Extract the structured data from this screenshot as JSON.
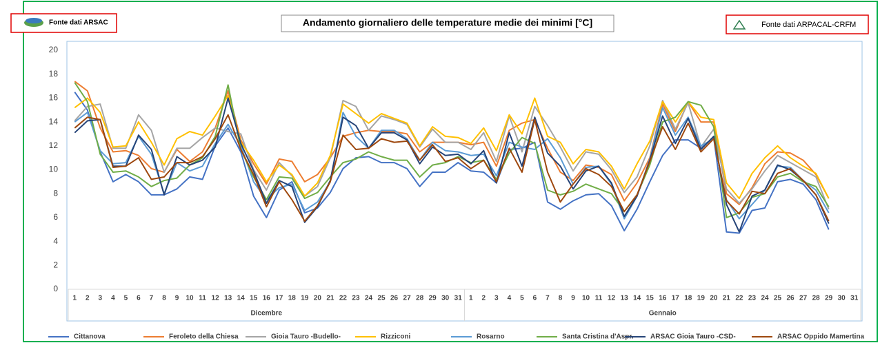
{
  "chart_data": {
    "type": "line",
    "title": "Andamento giornaliero delle temperature medie dei minimi  [°C]",
    "sources": [
      "Fonte dati ARSAC",
      "Fonte dati ARPACAL-CRFM"
    ],
    "groups": [
      "Dicembre",
      "Gennaio"
    ],
    "categories": [
      "1",
      "2",
      "3",
      "4",
      "5",
      "6",
      "7",
      "8",
      "9",
      "10",
      "11",
      "12",
      "13",
      "14",
      "15",
      "16",
      "17",
      "18",
      "19",
      "20",
      "21",
      "22",
      "23",
      "24",
      "25",
      "26",
      "27",
      "28",
      "29",
      "30",
      "31",
      "1",
      "2",
      "3",
      "4",
      "5",
      "6",
      "7",
      "8",
      "9",
      "10",
      "11",
      "12",
      "13",
      "14",
      "15",
      "16",
      "17",
      "18",
      "19",
      "20",
      "21",
      "22",
      "23",
      "24",
      "25",
      "26",
      "27",
      "28",
      "29",
      "30",
      "31"
    ],
    "ylim": [
      0,
      20
    ],
    "yticks": [
      0,
      2,
      4,
      6,
      8,
      10,
      12,
      14,
      16,
      18,
      20
    ],
    "grid": false,
    "series": [
      {
        "name": "Cittanova",
        "color": "#4472c4",
        "values": [
          16.5,
          15,
          11.5,
          9,
          9.6,
          9,
          7.9,
          7.9,
          8.4,
          9.4,
          9.2,
          12,
          13.5,
          11.5,
          7.8,
          6,
          8.3,
          9,
          6.4,
          6.8,
          8.1,
          10.1,
          11,
          11.1,
          10.6,
          10.6,
          10.1,
          8.6,
          9.8,
          9.8,
          10.6,
          9.9,
          9.8,
          8.9,
          11.7,
          11.8,
          12.3,
          7.3,
          6.7,
          7.4,
          7.9,
          8,
          7,
          4.9,
          6.7,
          9,
          11.2,
          12.5,
          12.5,
          11.8,
          12.7,
          4.8,
          4.7,
          6.6,
          6.8,
          9,
          9.2,
          8.8,
          7.5,
          5,
          null,
          null
        ]
      },
      {
        "name": "Feroleto della Chiesa",
        "color": "#ed7d31",
        "values": [
          17.4,
          16.6,
          13.5,
          11.5,
          11.6,
          11.2,
          10.1,
          9.8,
          11.7,
          10.7,
          11.5,
          13.5,
          16.6,
          12.5,
          10.5,
          8.8,
          10.9,
          10.7,
          9,
          9.6,
          11,
          12.8,
          13.1,
          13.3,
          13.2,
          13.2,
          13,
          11.5,
          12.3,
          12.3,
          12.3,
          12.1,
          12.3,
          10.3,
          13.3,
          13.9,
          14.2,
          11.8,
          9.8,
          9.1,
          10.4,
          10.2,
          9.6,
          7.4,
          8.9,
          11,
          15.5,
          13.2,
          15.7,
          14,
          14,
          8,
          7.1,
          8.5,
          10.5,
          11.5,
          11.4,
          10.8,
          9.6,
          7.6,
          null,
          null
        ]
      },
      {
        "name": "Gioia Tauro -Budello-",
        "color": "#a5a5a5",
        "values": [
          14.1,
          15.3,
          15.5,
          11.8,
          11.8,
          14.6,
          13.3,
          9.8,
          11.8,
          11.8,
          12.7,
          13.5,
          13.2,
          13,
          10,
          8.3,
          10.6,
          9.5,
          7.8,
          8.6,
          11,
          15.8,
          15.3,
          13.3,
          14.5,
          14.2,
          13.8,
          11.9,
          13.4,
          12.3,
          12.3,
          11.7,
          13.1,
          10.7,
          14.5,
          11.5,
          15.3,
          13.7,
          11.9,
          9.9,
          11.5,
          11.3,
          10,
          8.1,
          9.4,
          12,
          15.8,
          13.4,
          15.6,
          11.9,
          13.4,
          8.4,
          7.2,
          8.4,
          9.9,
          11.2,
          10.6,
          10,
          9.4,
          6.7,
          null,
          null
        ]
      },
      {
        "name": "Rizziconi",
        "color": "#ffc000",
        "values": [
          15.2,
          16,
          14.8,
          11.9,
          12,
          14,
          12.3,
          10.4,
          12.6,
          13.2,
          12.9,
          14.5,
          16.2,
          12.3,
          10.8,
          9,
          10.4,
          9.6,
          7.8,
          8.9,
          11.2,
          15.5,
          14.7,
          13.9,
          14.7,
          14.3,
          13.9,
          12,
          13.6,
          12.8,
          12.7,
          12.2,
          13.5,
          11.6,
          14.6,
          13,
          16,
          12.8,
          12.3,
          10.5,
          11.7,
          11.5,
          10.3,
          8.4,
          10.5,
          12.4,
          15.7,
          14,
          15.7,
          14.4,
          14.2,
          8.9,
          7.6,
          9.7,
          11,
          12,
          11,
          10.3,
          9.7,
          7.6,
          null,
          null
        ]
      },
      {
        "name": "Rosarno",
        "color": "#5b9bd5",
        "values": [
          14,
          14.8,
          11.6,
          10.5,
          10.6,
          12.8,
          11.3,
          8,
          10.6,
          9.9,
          10.3,
          12.2,
          13.8,
          12,
          9,
          7.5,
          8.5,
          8.8,
          6.6,
          7.3,
          9,
          14.8,
          12.8,
          11.8,
          13.3,
          13.3,
          12.6,
          10.8,
          12.3,
          11.6,
          11.5,
          11.2,
          11.3,
          9.5,
          12.3,
          11.9,
          11.7,
          12.6,
          11,
          8.8,
          10.2,
          10.3,
          8.8,
          5.9,
          7.8,
          10.9,
          15.2,
          12.9,
          14.4,
          12,
          12.6,
          7.5,
          5.9,
          7.1,
          8.3,
          10.3,
          10.2,
          9.1,
          8.3,
          6.4,
          null,
          null
        ]
      },
      {
        "name": "Santa Cristina d'Aspr.",
        "color": "#70ad47",
        "values": [
          17.3,
          15.7,
          11.3,
          9.8,
          9.9,
          9.4,
          8.6,
          9.1,
          9.3,
          10.4,
          11,
          12.8,
          17.1,
          11.7,
          9.4,
          7.5,
          9.4,
          9.3,
          7.6,
          8.1,
          9.4,
          10.6,
          10.9,
          11.5,
          11.1,
          10.8,
          10.8,
          9.4,
          10.4,
          10.6,
          11.1,
          10.6,
          10.8,
          9.2,
          11.4,
          12.7,
          12.2,
          8.3,
          7.9,
          8.2,
          8.8,
          8.4,
          8,
          6.5,
          7.9,
          10.4,
          14,
          14.4,
          15.7,
          15.4,
          13.6,
          6,
          6.4,
          7.7,
          8,
          9.4,
          9.7,
          9,
          8.6,
          6.9,
          null,
          null
        ]
      },
      {
        "name": "ARSAC Gioia Tauro -CSD-",
        "color": "#264478",
        "values": [
          13.1,
          14.1,
          14.2,
          10.3,
          10.3,
          12.9,
          11.7,
          7.9,
          11.1,
          10.4,
          10.8,
          11.9,
          16,
          12.2,
          9.9,
          7.2,
          9.1,
          8.6,
          5.6,
          6.9,
          9.1,
          14.4,
          13.7,
          11.8,
          13.1,
          13.1,
          12.5,
          10.5,
          11.9,
          11.2,
          11.3,
          10.5,
          11.6,
          8.9,
          13.1,
          10.3,
          14.4,
          11.4,
          10.3,
          8.4,
          9.9,
          10.3,
          8.9,
          6.1,
          7.8,
          10.8,
          14.5,
          12.2,
          14.3,
          11.7,
          12.8,
          7.1,
          4.8,
          7.8,
          8.3,
          10.4,
          10,
          9.1,
          7.9,
          5.5,
          null,
          null
        ]
      },
      {
        "name": "ARSAC Oppido Mamertina",
        "color": "#9e480e",
        "values": [
          13.5,
          14.4,
          14.2,
          10.2,
          10.3,
          11,
          9.2,
          9.4,
          10.6,
          10.6,
          11.1,
          12.6,
          14.6,
          11.7,
          9.6,
          6.9,
          9,
          7.5,
          5.7,
          7,
          9,
          12.9,
          11.7,
          11.8,
          12.6,
          12.3,
          12.4,
          10.8,
          12.1,
          10.7,
          11,
          10.1,
          10.8,
          9,
          11.8,
          9.8,
          14.2,
          9.8,
          7.3,
          8.8,
          10.1,
          9.6,
          8.6,
          6.5,
          7.9,
          10.7,
          13.6,
          11.7,
          13.9,
          11.5,
          12.6,
          7.4,
          6.3,
          8.2,
          8,
          9.7,
          10.1,
          9.1,
          7.9,
          5.7,
          null,
          null
        ]
      }
    ]
  }
}
